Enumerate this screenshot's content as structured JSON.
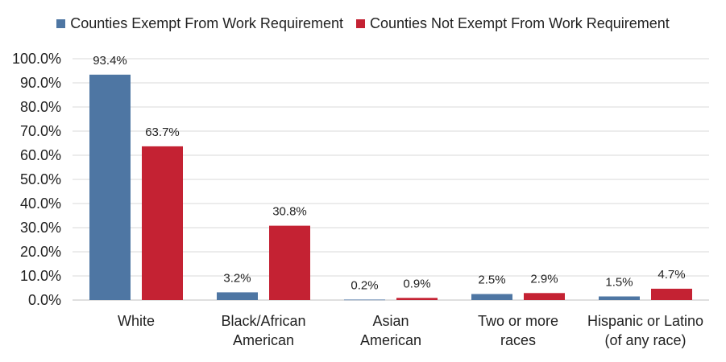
{
  "chart_data": {
    "type": "bar",
    "title": "",
    "xlabel": "",
    "ylabel": "",
    "categories": [
      [
        "White"
      ],
      [
        "Black/African",
        "American"
      ],
      [
        "Asian",
        "American"
      ],
      [
        "Two or more",
        "races"
      ],
      [
        "Hispanic or Latino",
        "(of any race)"
      ]
    ],
    "series": [
      {
        "name": "Counties Exempt From Work Requirement",
        "color": "#4e76a3",
        "values": [
          93.4,
          3.2,
          0.2,
          2.5,
          1.5
        ],
        "labels": [
          "93.4%",
          "3.2%",
          "0.2%",
          "2.5%",
          "1.5%"
        ]
      },
      {
        "name": "Counties Not Exempt From Work Requirement",
        "color": "#c42233",
        "values": [
          63.7,
          30.8,
          0.9,
          2.9,
          4.7
        ],
        "labels": [
          "63.7%",
          "30.8%",
          "0.9%",
          "2.9%",
          "4.7%"
        ]
      }
    ],
    "ylim": [
      0,
      100
    ],
    "yticks": [
      "0.0%",
      "10.0%",
      "20.0%",
      "30.0%",
      "40.0%",
      "50.0%",
      "60.0%",
      "70.0%",
      "80.0%",
      "90.0%",
      "100.0%"
    ],
    "grid": true,
    "legend_position": "top"
  }
}
